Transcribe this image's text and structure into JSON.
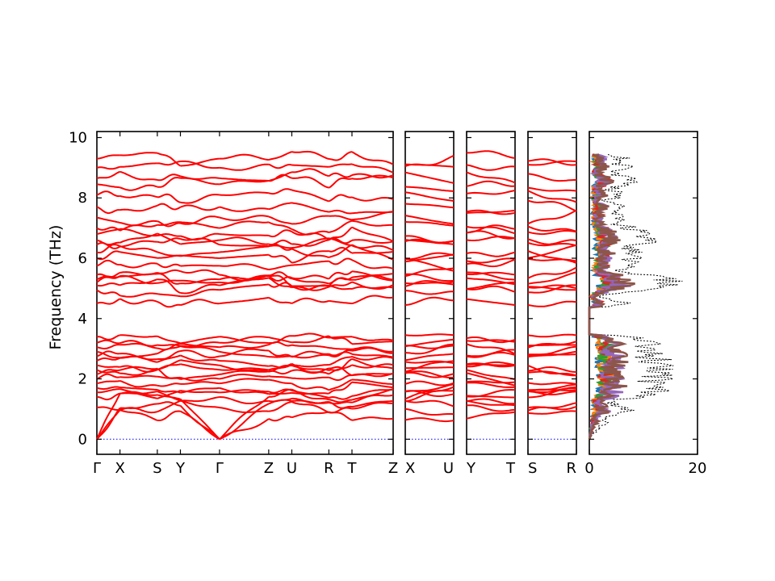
{
  "chart_data": [
    {
      "type": "line",
      "name": "phonon-band-structure",
      "ylabel": "Frequency (THz)",
      "ylim": [
        -0.5,
        10.2
      ],
      "yticks": [
        0,
        2,
        4,
        6,
        8,
        10
      ],
      "band_color": "#ff0000",
      "zero_line_color": "#0000ff",
      "panels": [
        {
          "id": "p1",
          "segments": [
            "Γ-X",
            "X-S",
            "S-Y",
            "Y-Γ",
            "Γ-Z",
            "Z-U",
            "U-R",
            "R-T",
            "T-Z"
          ],
          "tick_labels": [
            "Γ",
            "X",
            "S",
            "Y",
            "Γ",
            "Z",
            "U",
            "R",
            "T",
            "Z"
          ],
          "tick_positions": [
            0,
            0.078,
            0.204,
            0.282,
            0.414,
            0.58,
            0.658,
            0.783,
            0.861,
            1.0
          ]
        },
        {
          "id": "p2",
          "segments": [
            "X-U"
          ],
          "tick_labels": [
            "X",
            "U"
          ],
          "tick_positions": [
            0,
            1
          ]
        },
        {
          "id": "p3",
          "segments": [
            "Y-T"
          ],
          "tick_labels": [
            "Y",
            "T"
          ],
          "tick_positions": [
            0,
            1
          ]
        },
        {
          "id": "p4",
          "segments": [
            "S-R"
          ],
          "tick_labels": [
            "S",
            "R"
          ],
          "tick_positions": [
            0,
            1
          ]
        }
      ],
      "bands_at_gamma": [
        0,
        0,
        0,
        1.05,
        1.4,
        1.55,
        1.7,
        1.85,
        2.0,
        2.15,
        2.3,
        2.45,
        2.6,
        2.75,
        2.9,
        3.05,
        3.2,
        3.4,
        4.5,
        4.95,
        5.1,
        5.2,
        5.3,
        5.45,
        5.75,
        6.0,
        6.2,
        6.45,
        6.6,
        6.8,
        7.0,
        7.35,
        7.7,
        8.1,
        8.45,
        8.65,
        9.0,
        9.3
      ]
    },
    {
      "type": "line",
      "name": "phonon-dos",
      "xlim": [
        0,
        20
      ],
      "xticks": [
        0,
        20
      ],
      "ylim": [
        -0.5,
        10.2
      ],
      "series": [
        {
          "color": "#000000",
          "style": "dotted"
        },
        {
          "color": "#1f77b4"
        },
        {
          "color": "#ff7f0e"
        },
        {
          "color": "#2ca02c"
        },
        {
          "color": "#d62728"
        },
        {
          "color": "#9467bd"
        },
        {
          "color": "#8c564b"
        }
      ]
    }
  ]
}
